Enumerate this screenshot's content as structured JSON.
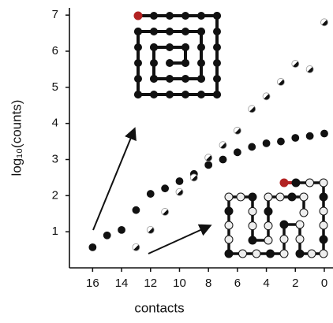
{
  "chart_data": {
    "type": "scatter",
    "xlabel": "contacts",
    "ylabel": "log₁₀(counts)",
    "xlim": [
      17.6,
      -0.6
    ],
    "ylim": [
      0,
      7.2
    ],
    "xticks": [
      16,
      14,
      12,
      10,
      8,
      6,
      4,
      2,
      0
    ],
    "yticks": [
      1,
      2,
      3,
      4,
      5,
      6,
      7
    ],
    "series": [
      {
        "color": "#111111",
        "marker": "filled",
        "x": [
          16,
          15,
          14,
          13,
          12,
          11,
          10,
          9,
          8,
          7,
          6,
          5,
          4,
          3,
          2,
          1,
          0
        ],
        "values": [
          0.57,
          0.9,
          1.05,
          1.6,
          2.05,
          2.2,
          2.4,
          2.6,
          2.85,
          3.0,
          3.2,
          3.35,
          3.45,
          3.5,
          3.6,
          3.65,
          3.72
        ]
      },
      {
        "color": "#111111",
        "marker": "half",
        "x": [
          13,
          12,
          11,
          10,
          9,
          8,
          7,
          6,
          5,
          4,
          3,
          2,
          1,
          0
        ],
        "values": [
          0.57,
          1.05,
          1.55,
          2.1,
          2.5,
          3.05,
          3.4,
          3.8,
          4.4,
          4.75,
          5.15,
          5.65,
          5.5,
          6.8
        ]
      }
    ]
  }
}
